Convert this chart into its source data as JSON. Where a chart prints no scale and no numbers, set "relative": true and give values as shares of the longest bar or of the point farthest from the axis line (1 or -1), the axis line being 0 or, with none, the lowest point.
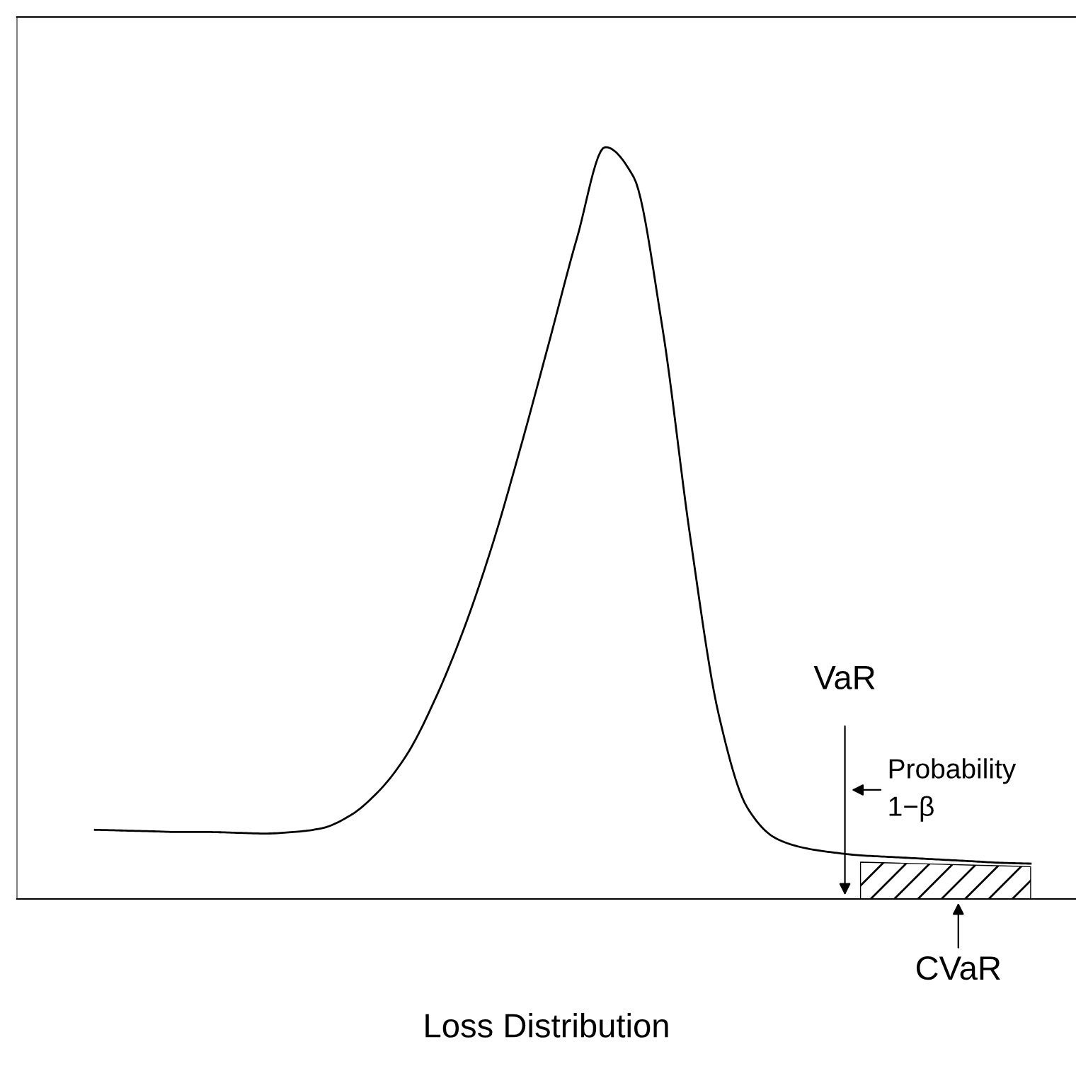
{
  "chart_data": {
    "type": "line",
    "relative": true,
    "xlabel": "Loss Distribution",
    "categories": [
      null,
      null,
      null,
      null,
      null,
      null,
      null,
      null,
      null,
      null,
      null,
      null,
      null,
      null,
      null,
      null,
      null,
      null,
      null,
      null,
      null,
      null,
      null,
      null,
      null,
      null,
      null,
      null,
      null,
      null,
      null,
      null,
      null,
      null
    ],
    "series": [
      {
        "color": "#000000",
        "values": [
          0.092,
          0.091,
          0.09,
          0.089,
          0.089,
          0.088,
          0.087,
          0.089,
          0.094,
          0.111,
          0.143,
          0.192,
          0.266,
          0.358,
          0.469,
          0.599,
          0.738,
          0.879,
          1,
          0.96,
          0.763,
          0.48,
          0.245,
          0.122,
          0.081,
          0.068,
          0.062,
          0.058,
          0.056,
          0.054,
          0.052,
          0.05,
          0.048,
          0.047
        ]
      },
      {
        "type": "area",
        "color": "#000000",
        "values": [
          null,
          null,
          null,
          null,
          null,
          null,
          null,
          null,
          null,
          null,
          null,
          null,
          null,
          null,
          null,
          null,
          null,
          null,
          null,
          null,
          null,
          null,
          null,
          null,
          null,
          null,
          null,
          0.049,
          0.048,
          0.047,
          0.046,
          0.045,
          0.044,
          0.043
        ]
      }
    ],
    "annotations": [
      "VaR",
      "Probability\n1−β",
      "CVaR"
    ]
  }
}
